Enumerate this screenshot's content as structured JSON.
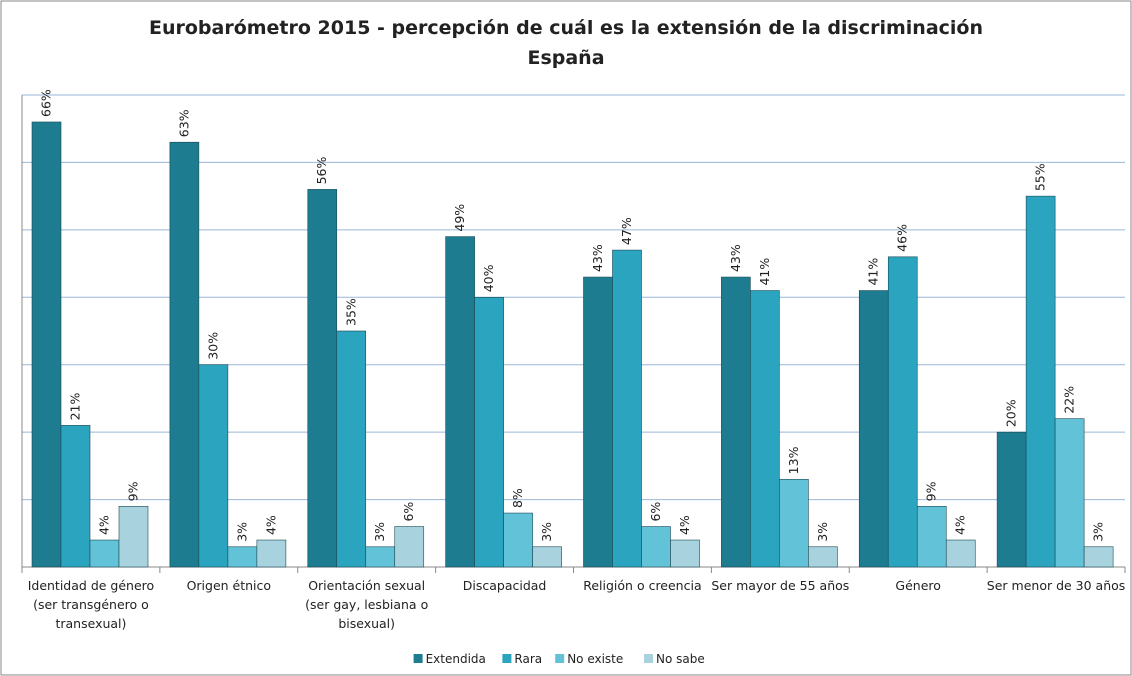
{
  "chart_data": {
    "type": "bar",
    "title": "Eurobarómetro 2015 - percepción de cuál es la extensión de la discriminación",
    "subtitle": "España",
    "categories": [
      "Identidad de género (ser transgénero o transexual)",
      "Origen étnico",
      "Orientación sexual (ser gay, lesbiana o bisexual)",
      "Discapacidad",
      "Religión o creencia",
      "Ser mayor de 55 años",
      "Género",
      "Ser menor de 30 años"
    ],
    "series": [
      {
        "name": "Extendida",
        "color": "#1e7c90",
        "values": [
          66,
          63,
          56,
          49,
          43,
          43,
          41,
          20
        ],
        "value_labels": [
          "66%",
          "63%",
          "56%",
          "49%",
          "43%",
          "43%",
          "41%",
          "20%"
        ]
      },
      {
        "name": "Rara",
        "color": "#2aa4bf",
        "values": [
          21,
          30,
          35,
          40,
          47,
          41,
          46,
          55
        ],
        "value_labels": [
          "21%",
          "30%",
          "35%",
          "40%",
          "47%",
          "41%",
          "46%",
          "55%"
        ]
      },
      {
        "name": "No existe",
        "color": "#62c2d8",
        "values": [
          4,
          3,
          3,
          8,
          6,
          13,
          9,
          22
        ],
        "value_labels": [
          "4%",
          "3%",
          "3%",
          "8%",
          "6%",
          "13%",
          "9%",
          "22%"
        ]
      },
      {
        "name": "No sabe",
        "color": "#a9d2df",
        "values": [
          9,
          4,
          6,
          3,
          4,
          3,
          4,
          3
        ],
        "value_labels": [
          "9%",
          "4%",
          "6%",
          "3%",
          "4%",
          "3%",
          "4%",
          "3%"
        ]
      }
    ],
    "ylim": [
      0,
      70
    ],
    "yticks": [
      0,
      10,
      20,
      30,
      40,
      50,
      60,
      70
    ],
    "grid": true,
    "legend": "bottom"
  }
}
